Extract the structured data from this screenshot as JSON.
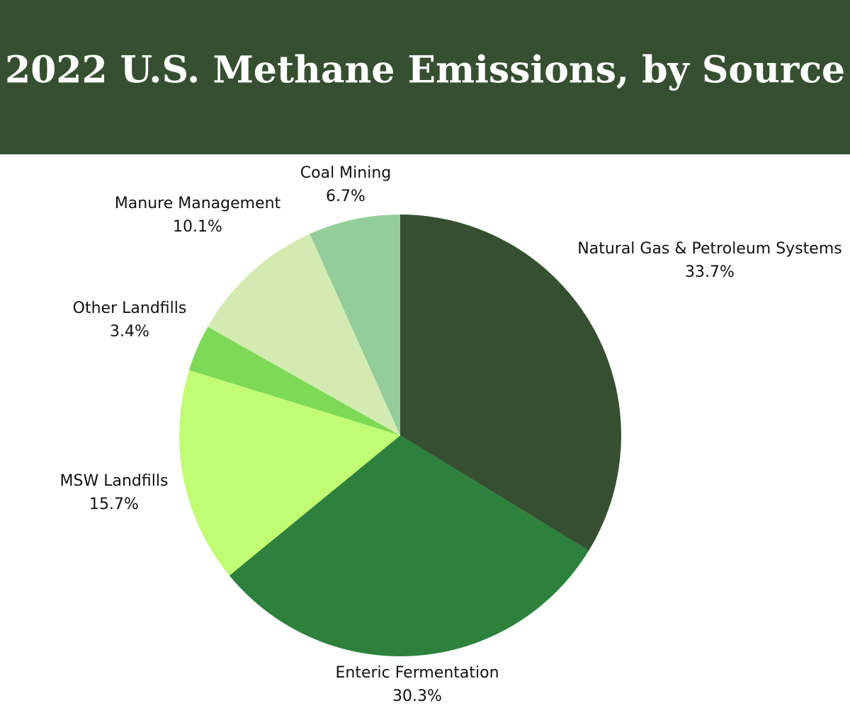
{
  "chart_data": {
    "type": "pie",
    "title": "2022 U.S. Methane Emissions, by Source",
    "categories": [
      "Natural Gas & Petroleum Systems",
      "Enteric Fermentation",
      "MSW Landfills",
      "Other Landfills",
      "Manure Management",
      "Coal Mining"
    ],
    "values": [
      33.7,
      30.3,
      15.7,
      3.4,
      10.1,
      6.7
    ],
    "value_labels": [
      "33.7%",
      "30.3%",
      "15.7%",
      "3.4%",
      "10.1%",
      "6.7%"
    ],
    "colors": [
      "#374f31",
      "#2d813d",
      "#c1fd72",
      "#7ed957",
      "#d3ebb1",
      "#92cd9b"
    ]
  }
}
